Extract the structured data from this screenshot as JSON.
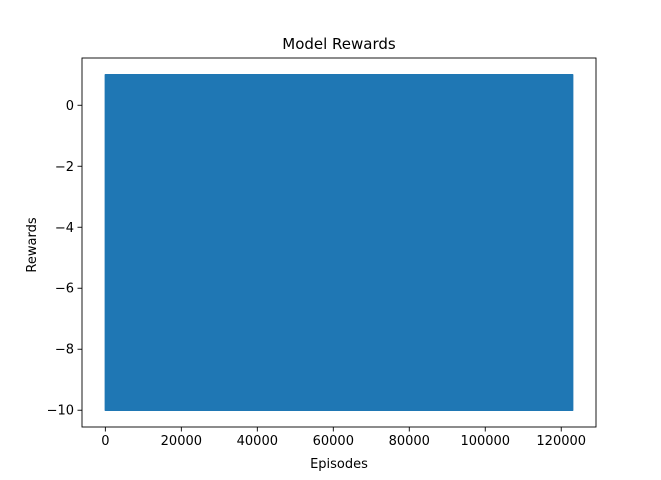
{
  "chart_data": {
    "type": "line",
    "title": "Model Rewards",
    "xlabel": "Episodes",
    "ylabel": "Rewards",
    "xlim": [
      -6150,
      129150
    ],
    "ylim": [
      -10.55,
      1.55
    ],
    "xticks": [
      0,
      20000,
      40000,
      60000,
      80000,
      100000,
      120000
    ],
    "xtick_labels": [
      "0",
      "20000",
      "40000",
      "60000",
      "80000",
      "100000",
      "120000"
    ],
    "yticks": [
      0,
      -2,
      -4,
      -6,
      -8,
      -10
    ],
    "ytick_labels": [
      "0",
      "−2",
      "−4",
      "−6",
      "−8",
      "−10"
    ],
    "grid": false,
    "series": [
      {
        "color": "#1f77b4",
        "x_range": [
          0,
          123000
        ],
        "min": -10,
        "max": 1,
        "note_values": [
          1,
          -10
        ]
      }
    ]
  }
}
